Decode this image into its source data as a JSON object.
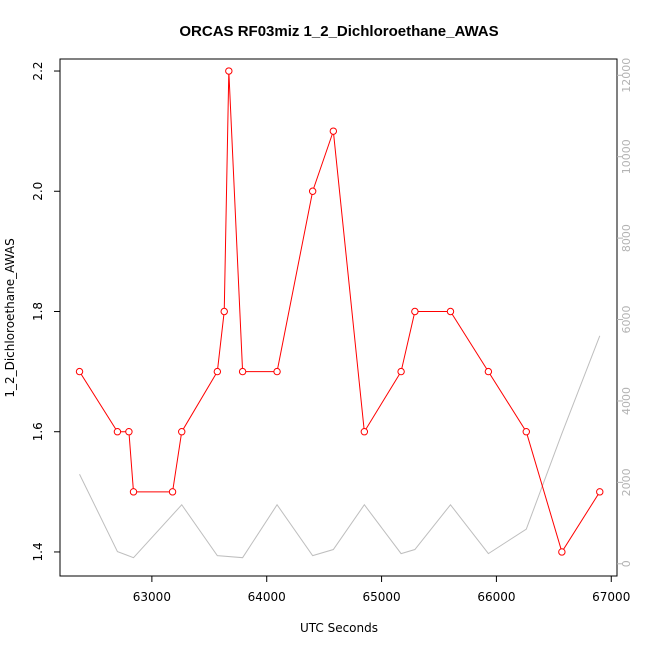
{
  "chart_data": {
    "type": "line",
    "title": "ORCAS RF03miz 1_2_Dichloroethane_AWAS",
    "xlabel": "UTC Seconds",
    "ylabel": "1_2_Dichloroethane_AWAS",
    "xlim": [
      62200,
      67050
    ],
    "ylim": [
      1.36,
      2.22
    ],
    "y2lim": [
      -300,
      12400
    ],
    "x_ticks": [
      63000,
      64000,
      65000,
      66000,
      67000
    ],
    "y_ticks": [
      1.4,
      1.6,
      1.8,
      2.0,
      2.2
    ],
    "y2_ticks": [
      0,
      2000,
      4000,
      6000,
      8000,
      10000,
      12000
    ],
    "grid": false,
    "colors": {
      "primary": "#ff0000",
      "secondary": "#bebebe",
      "axis": "#000000",
      "right_axis": "#b3b3b3"
    },
    "series": [
      {
        "axis": "left",
        "style": "line+markers",
        "color": "#ff0000",
        "x": [
          62370,
          62700,
          62800,
          62840,
          63180,
          63260,
          63570,
          63630,
          63670,
          63790,
          64090,
          64400,
          64580,
          64850,
          65170,
          65290,
          65600,
          65930,
          66260,
          66570,
          66900
        ],
        "y": [
          1.7,
          1.6,
          1.6,
          1.5,
          1.5,
          1.6,
          1.7,
          1.8,
          2.2,
          1.7,
          1.7,
          2.0,
          2.1,
          1.6,
          1.7,
          1.8,
          1.8,
          1.7,
          1.6,
          1.4,
          1.5
        ]
      },
      {
        "axis": "right",
        "style": "line",
        "color": "#bebebe",
        "x": [
          62370,
          62700,
          62840,
          63260,
          63570,
          63790,
          64090,
          64400,
          64580,
          64850,
          65170,
          65290,
          65600,
          65930,
          66260,
          66570,
          66900
        ],
        "y": [
          2200,
          300,
          150,
          1450,
          200,
          150,
          1450,
          200,
          350,
          1450,
          250,
          350,
          1450,
          250,
          850,
          3200,
          5600
        ]
      }
    ]
  }
}
